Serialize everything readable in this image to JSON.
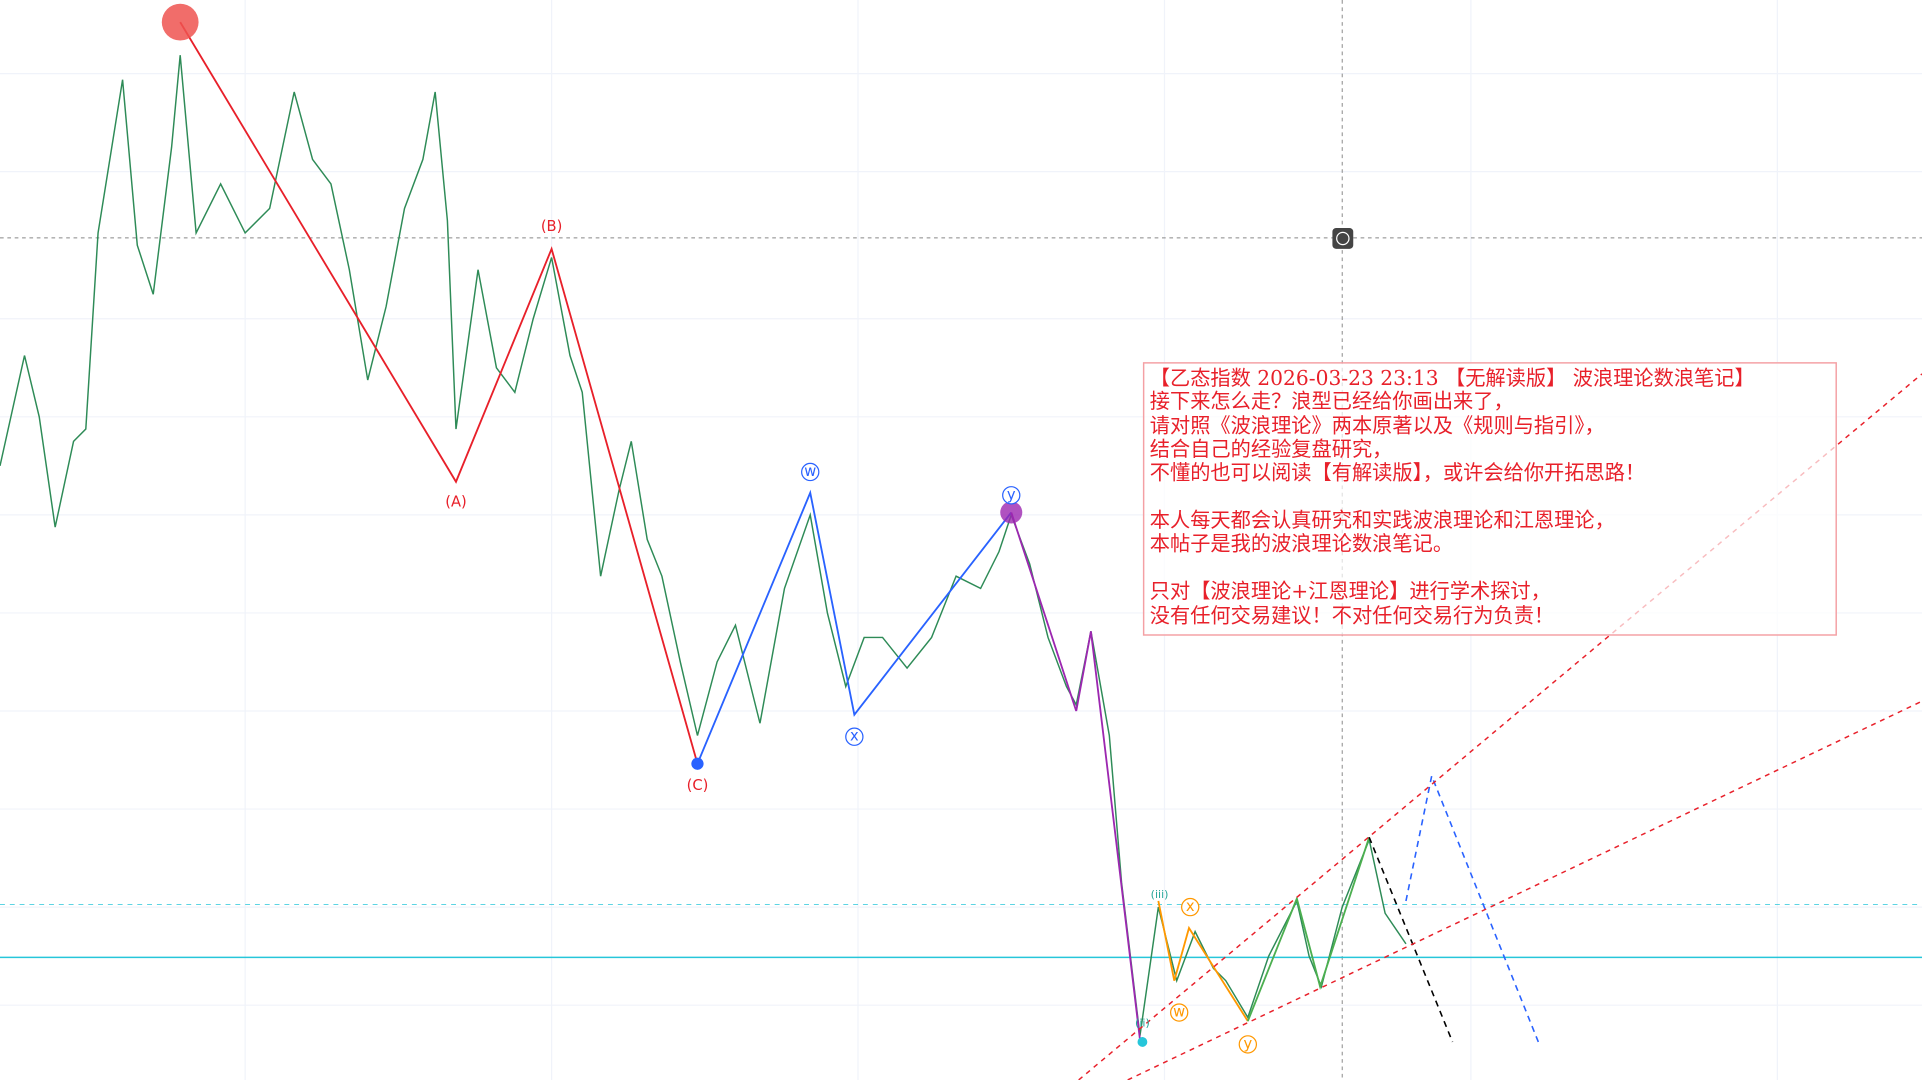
{
  "note": {
    "lines": [
      "【乙态指数 2026-03-23 23:13 【无解读版】 波浪理论数浪笔记】",
      "接下来怎么走？浪型已经给你画出来了，",
      "请对照《波浪理论》两本原著以及《规则与指引》，",
      "结合自己的经验复盘研究，",
      "不懂的也可以阅读【有解读版】，或许会给你开拓思路！",
      "本人每天都会认真研究和实践波浪理论和江恩理论，",
      "本帖子是我的波浪理论数浪笔记。",
      "只对【波浪理论+江恩理论】进行学术探讨，",
      "没有任何交易建议！不对任何交易行为负责！"
    ]
  },
  "wave_labels": {
    "red": [
      "(A)",
      "(B)",
      "(C)"
    ],
    "blue": [
      "w",
      "x",
      "y"
    ],
    "orange": [
      "x",
      "w",
      "y"
    ],
    "cyan": [
      "(ii)",
      "(iii)"
    ]
  }
}
